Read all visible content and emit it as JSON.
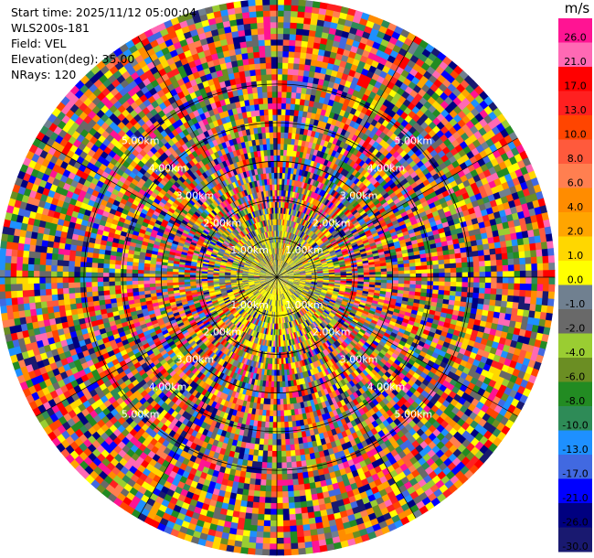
{
  "info": {
    "start_time": "Start time: 2025/11/12 05:00:04",
    "station": "WLS200s-181",
    "field": "Field: VEL",
    "elevation": "Elevation(deg): 35.00",
    "nrays": "NRays: 120"
  },
  "chart_data": {
    "type": "heatmap",
    "projection": "polar-ppi",
    "field": "VEL",
    "units": "m/s",
    "elevation_deg": 35.0,
    "n_rays": 120,
    "max_range_km": 7.2,
    "range_rings_km": [
      1.0,
      2.0,
      3.0,
      4.0,
      5.0
    ],
    "ring_labels": [
      "1.00km",
      "2.00km",
      "3.00km",
      "4.00km",
      "5.00km"
    ],
    "description_of_field": "near-zero velocities (olive/grey/yellow) within ~2 km; noisy full-range values beyond",
    "colorbar": {
      "title": "m/s",
      "tick_labels": [
        "26.0",
        "21.0",
        "17.0",
        "13.0",
        "10.0",
        "8.0",
        "6.0",
        "4.0",
        "2.0",
        "1.0",
        "0.0",
        "-1.0",
        "-2.0",
        "-4.0",
        "-6.0",
        "-8.0",
        "-10.0",
        "-13.0",
        "-17.0",
        "-21.0",
        "-26.0",
        "-30.0"
      ],
      "colors": [
        "#FF1493",
        "#FF69B4",
        "#FF0000",
        "#FF2020",
        "#FF4500",
        "#FF5A3C",
        "#FF7F50",
        "#FF8C00",
        "#FFA500",
        "#FFD700",
        "#FFFF00",
        "#708090",
        "#696969",
        "#9ACD32",
        "#6B8E23",
        "#228B22",
        "#2E8B57",
        "#1E90FF",
        "#4169E1",
        "#0000FF",
        "#000080",
        "#191970"
      ]
    }
  }
}
